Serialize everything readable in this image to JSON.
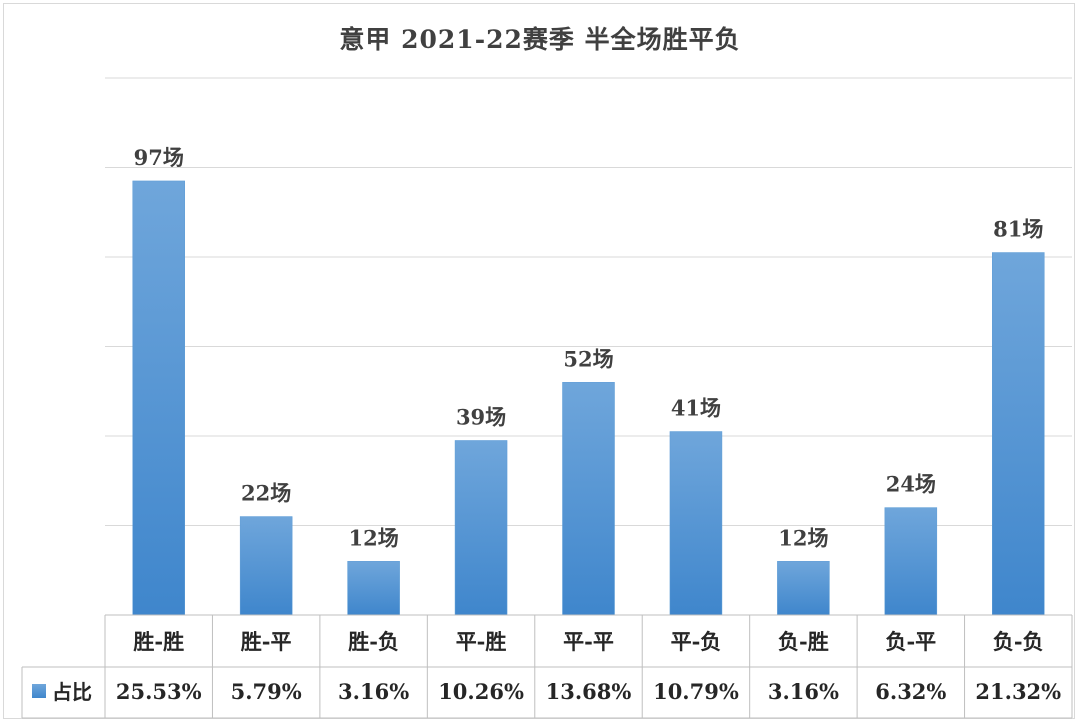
{
  "chart_data": {
    "type": "bar",
    "title": "意甲 2021-22赛季 半全场胜平负",
    "categories": [
      "胜-胜",
      "胜-平",
      "胜-负",
      "平-胜",
      "平-平",
      "平-负",
      "负-胜",
      "负-平",
      "负-负"
    ],
    "values": [
      97,
      22,
      12,
      39,
      52,
      41,
      12,
      24,
      81
    ],
    "value_labels": [
      "97场",
      "22场",
      "12场",
      "39场",
      "52场",
      "41场",
      "12场",
      "24场",
      "81场"
    ],
    "series": [
      {
        "name": "占比",
        "percent_labels": [
          "25.53%",
          "5.79%",
          "3.16%",
          "10.26%",
          "13.68%",
          "10.79%",
          "3.16%",
          "6.32%",
          "21.32%"
        ]
      }
    ],
    "ylim": [
      0,
      120
    ],
    "grid": true,
    "legend": "data-table-left",
    "bar_color": "#5b9bd5"
  }
}
